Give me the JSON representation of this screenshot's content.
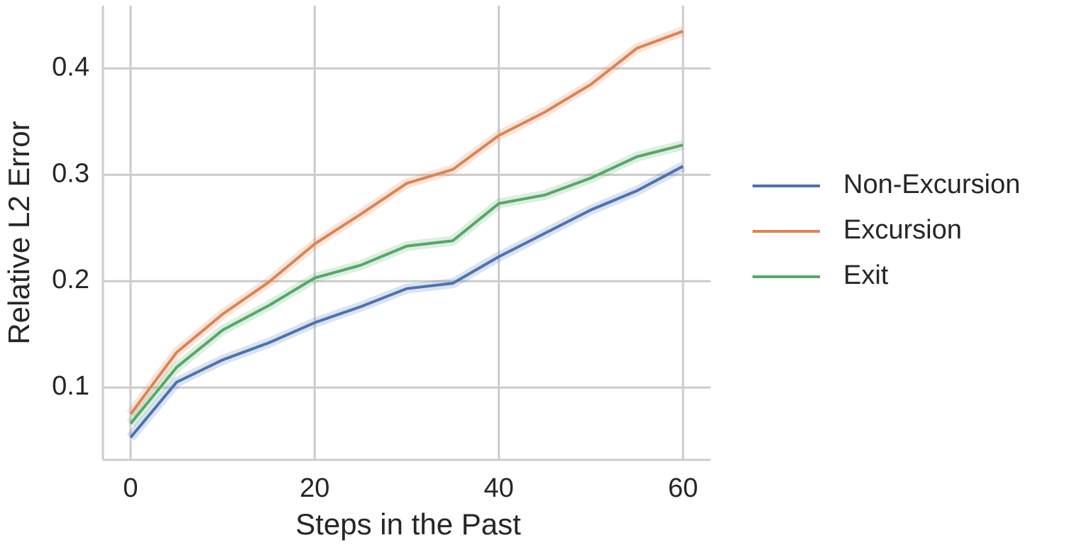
{
  "chart_data": {
    "type": "line",
    "xlabel": "Steps in the Past",
    "ylabel": "Relative L2 Error",
    "x": [
      0,
      5,
      10,
      15,
      20,
      25,
      30,
      35,
      40,
      45,
      50,
      55,
      60
    ],
    "series": [
      {
        "name": "Non-Excursion",
        "color": "#4c72b0",
        "values": [
          0.053,
          0.105,
          0.126,
          0.142,
          0.161,
          0.176,
          0.193,
          0.198,
          0.223,
          0.245,
          0.267,
          0.285,
          0.308
        ]
      },
      {
        "name": "Excursion",
        "color": "#dd8452",
        "values": [
          0.075,
          0.133,
          0.169,
          0.199,
          0.235,
          0.263,
          0.292,
          0.305,
          0.337,
          0.359,
          0.385,
          0.419,
          0.435
        ]
      },
      {
        "name": "Exit",
        "color": "#55a868",
        "values": [
          0.066,
          0.119,
          0.154,
          0.177,
          0.203,
          0.215,
          0.233,
          0.238,
          0.273,
          0.281,
          0.297,
          0.317,
          0.328
        ]
      }
    ],
    "xlim": [
      -3,
      63
    ],
    "xticks": [
      0,
      20,
      40,
      60
    ],
    "ylim": [
      0.032,
      0.459
    ],
    "yticks": [
      0.1,
      0.2,
      0.3,
      0.4
    ],
    "grid": true,
    "legend": "outside right"
  }
}
